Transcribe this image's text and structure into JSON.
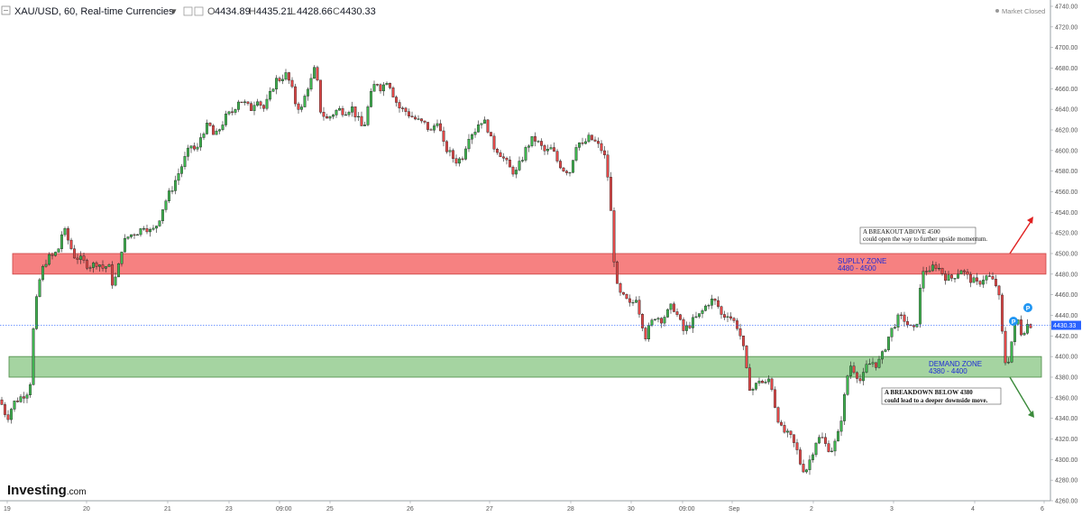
{
  "header": {
    "symbol": "XAU/USD, 60, Real-time Currencies",
    "open_label": "O",
    "open": "4434.89",
    "high_label": "H",
    "high": "4435.21",
    "low_label": "L",
    "low": "4428.66",
    "close_label": "C",
    "close": "4430.33"
  },
  "market_status": "Market Closed",
  "logo": {
    "brand": "Investing",
    "suffix": ".com"
  },
  "chart_data": {
    "type": "candlestick",
    "y_axis": {
      "range": [
        4260,
        4740
      ],
      "ticks": [
        "4740.00",
        "4720.00",
        "4700.00",
        "4680.00",
        "4660.00",
        "4640.00",
        "4620.00",
        "4600.00",
        "4580.00",
        "4560.00",
        "4540.00",
        "4520.00",
        "4500.00",
        "4480.00",
        "4460.00",
        "4440.00",
        "4420.00",
        "4400.00",
        "4380.00",
        "4360.00",
        "4340.00",
        "4320.00",
        "4300.00",
        "4280.00",
        "4260.00"
      ]
    },
    "x_axis": {
      "tick_labels": [
        "19",
        "20",
        "21",
        "23",
        "09:00",
        "25",
        "26",
        "27",
        "28",
        "30",
        "09:00",
        "Sep",
        "2",
        "3",
        "4",
        "6"
      ]
    },
    "last_price": 4430.33,
    "last_price_label": "4430.33",
    "bull_color": "#3fb34f",
    "bear_color": "#e04848",
    "path_points": [
      [
        0,
        4358
      ],
      [
        8,
        4340
      ],
      [
        15,
        4355
      ],
      [
        25,
        4362
      ],
      [
        33,
        4368
      ],
      [
        38,
        4440
      ],
      [
        45,
        4480
      ],
      [
        52,
        4495
      ],
      [
        60,
        4498
      ],
      [
        65,
        4505
      ],
      [
        70,
        4525
      ],
      [
        76,
        4512
      ],
      [
        82,
        4498
      ],
      [
        88,
        4495
      ],
      [
        95,
        4490
      ],
      [
        102,
        4488
      ],
      [
        108,
        4492
      ],
      [
        115,
        4485
      ],
      [
        120,
        4490
      ],
      [
        125,
        4470
      ],
      [
        130,
        4480
      ],
      [
        135,
        4505
      ],
      [
        140,
        4515
      ],
      [
        148,
        4520
      ],
      [
        155,
        4522
      ],
      [
        160,
        4528
      ],
      [
        168,
        4520
      ],
      [
        175,
        4530
      ],
      [
        182,
        4548
      ],
      [
        190,
        4562
      ],
      [
        198,
        4578
      ],
      [
        205,
        4592
      ],
      [
        212,
        4605
      ],
      [
        218,
        4598
      ],
      [
        224,
        4618
      ],
      [
        232,
        4625
      ],
      [
        238,
        4612
      ],
      [
        244,
        4622
      ],
      [
        250,
        4632
      ],
      [
        258,
        4638
      ],
      [
        265,
        4650
      ],
      [
        272,
        4645
      ],
      [
        278,
        4640
      ],
      [
        285,
        4652
      ],
      [
        292,
        4640
      ],
      [
        298,
        4650
      ],
      [
        305,
        4668
      ],
      [
        312,
        4670
      ],
      [
        316,
        4675
      ],
      [
        322,
        4665
      ],
      [
        328,
        4645
      ],
      [
        335,
        4640
      ],
      [
        340,
        4660
      ],
      [
        345,
        4668
      ],
      [
        350,
        4682
      ],
      [
        355,
        4640
      ],
      [
        362,
        4630
      ],
      [
        368,
        4635
      ],
      [
        375,
        4640
      ],
      [
        382,
        4638
      ],
      [
        390,
        4642
      ],
      [
        397,
        4630
      ],
      [
        403,
        4620
      ],
      [
        410,
        4650
      ],
      [
        417,
        4668
      ],
      [
        423,
        4660
      ],
      [
        430,
        4670
      ],
      [
        436,
        4655
      ],
      [
        442,
        4642
      ],
      [
        450,
        4638
      ],
      [
        458,
        4632
      ],
      [
        465,
        4628
      ],
      [
        472,
        4625
      ],
      [
        478,
        4618
      ],
      [
        485,
        4630
      ],
      [
        492,
        4605
      ],
      [
        498,
        4598
      ],
      [
        505,
        4590
      ],
      [
        512,
        4592
      ],
      [
        520,
        4615
      ],
      [
        527,
        4620
      ],
      [
        533,
        4630
      ],
      [
        540,
        4625
      ],
      [
        546,
        4605
      ],
      [
        553,
        4600
      ],
      [
        560,
        4590
      ],
      [
        566,
        4582
      ],
      [
        572,
        4578
      ],
      [
        578,
        4590
      ],
      [
        585,
        4605
      ],
      [
        592,
        4612
      ],
      [
        598,
        4606
      ],
      [
        605,
        4598
      ],
      [
        612,
        4602
      ],
      [
        618,
        4590
      ],
      [
        625,
        4582
      ],
      [
        632,
        4580
      ],
      [
        640,
        4610
      ],
      [
        646,
        4604
      ],
      [
        652,
        4612
      ],
      [
        658,
        4610
      ],
      [
        664,
        4604
      ],
      [
        668,
        4600
      ],
      [
        672,
        4590
      ],
      [
        676,
        4560
      ],
      [
        679,
        4520
      ],
      [
        683,
        4470
      ],
      [
        688,
        4460
      ],
      [
        694,
        4455
      ],
      [
        700,
        4448
      ],
      [
        705,
        4460
      ],
      [
        710,
        4440
      ],
      [
        716,
        4420
      ],
      [
        721,
        4430
      ],
      [
        727,
        4440
      ],
      [
        733,
        4436
      ],
      [
        740,
        4442
      ],
      [
        746,
        4450
      ],
      [
        752,
        4438
      ],
      [
        758,
        4425
      ],
      [
        764,
        4430
      ],
      [
        770,
        4436
      ],
      [
        776,
        4440
      ],
      [
        782,
        4448
      ],
      [
        788,
        4455
      ],
      [
        795,
        4452
      ],
      [
        801,
        4438
      ],
      [
        807,
        4442
      ],
      [
        813,
        4435
      ],
      [
        819,
        4428
      ],
      [
        825,
        4405
      ],
      [
        830,
        4372
      ],
      [
        836,
        4368
      ],
      [
        842,
        4378
      ],
      [
        848,
        4372
      ],
      [
        854,
        4380
      ],
      [
        860,
        4350
      ],
      [
        866,
        4330
      ],
      [
        872,
        4325
      ],
      [
        878,
        4320
      ],
      [
        884,
        4308
      ],
      [
        889,
        4292
      ],
      [
        894,
        4290
      ],
      [
        899,
        4302
      ],
      [
        905,
        4318
      ],
      [
        911,
        4322
      ],
      [
        917,
        4312
      ],
      [
        923,
        4310
      ],
      [
        929,
        4322
      ],
      [
        935,
        4350
      ],
      [
        939,
        4378
      ],
      [
        943,
        4392
      ],
      [
        949,
        4385
      ],
      [
        955,
        4375
      ],
      [
        961,
        4390
      ],
      [
        967,
        4395
      ],
      [
        973,
        4392
      ],
      [
        979,
        4402
      ],
      [
        985,
        4418
      ],
      [
        991,
        4430
      ],
      [
        997,
        4438
      ],
      [
        1003,
        4436
      ],
      [
        1009,
        4428
      ],
      [
        1014,
        4425
      ],
      [
        1018,
        4438
      ],
      [
        1022,
        4480
      ],
      [
        1026,
        4488
      ],
      [
        1030,
        4478
      ],
      [
        1036,
        4490
      ],
      [
        1042,
        4485
      ],
      [
        1048,
        4478
      ],
      [
        1054,
        4475
      ],
      [
        1060,
        4480
      ],
      [
        1066,
        4485
      ],
      [
        1072,
        4478
      ],
      [
        1078,
        4474
      ],
      [
        1084,
        4470
      ],
      [
        1090,
        4476
      ],
      [
        1096,
        4478
      ],
      [
        1102,
        4472
      ],
      [
        1106,
        4468
      ],
      [
        1110,
        4445
      ],
      [
        1113,
        4400
      ],
      [
        1117,
        4390
      ],
      [
        1121,
        4410
      ],
      [
        1125,
        4428
      ],
      [
        1129,
        4435
      ],
      [
        1133,
        4422
      ],
      [
        1137,
        4428
      ],
      [
        1141,
        4433
      ],
      [
        1144,
        4430
      ]
    ],
    "zones": [
      {
        "name": "supply",
        "label": "SUPLLY ZONE",
        "range_label": "4480 - 4500",
        "from": 4480,
        "to": 4500,
        "color": "#f46b6b"
      },
      {
        "name": "demand",
        "label": "DEMAND ZONE",
        "range_label": "4380 - 4400",
        "from": 4380,
        "to": 4400,
        "color": "#8fc98a"
      }
    ],
    "annotations": [
      {
        "name": "breakout-note",
        "line1": "A BREAKOUT ABOVE 4500",
        "line2": "could open the way to further upside momentum."
      },
      {
        "name": "breakdown-note",
        "line1": "A BREAKDOWN BELOW 4380",
        "line2": "could lead to a deeper downside move."
      }
    ],
    "markers": [
      "P",
      "P"
    ]
  }
}
